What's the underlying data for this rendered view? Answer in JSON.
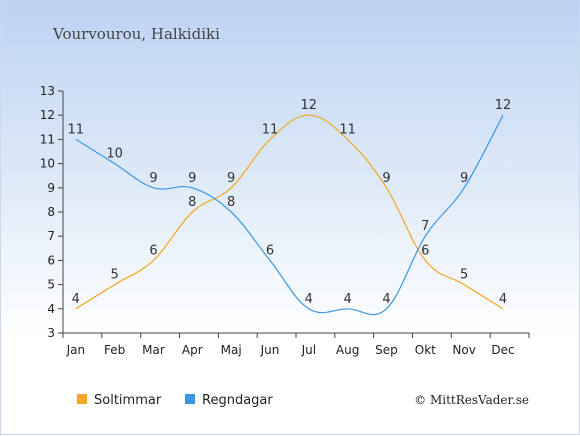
{
  "chart_data": {
    "type": "line",
    "title": "Vourvourou, Halkidiki",
    "categories": [
      "Jan",
      "Feb",
      "Mar",
      "Apr",
      "Maj",
      "Jun",
      "Jul",
      "Aug",
      "Sep",
      "Okt",
      "Nov",
      "Dec"
    ],
    "ylim": [
      3,
      13
    ],
    "yticks": [
      3,
      4,
      5,
      6,
      7,
      8,
      9,
      10,
      11,
      12,
      13
    ],
    "series": [
      {
        "name": "Soltimmar",
        "color": "#f5a623",
        "values": [
          4,
          5,
          6,
          8,
          9,
          11,
          12,
          11,
          9,
          6,
          5,
          4
        ]
      },
      {
        "name": "Regndagar",
        "color": "#3a97e6",
        "values": [
          11,
          10,
          9,
          9,
          8,
          6,
          4,
          4,
          4,
          7,
          9,
          12
        ]
      }
    ],
    "credit": "© MittResVader.se"
  }
}
